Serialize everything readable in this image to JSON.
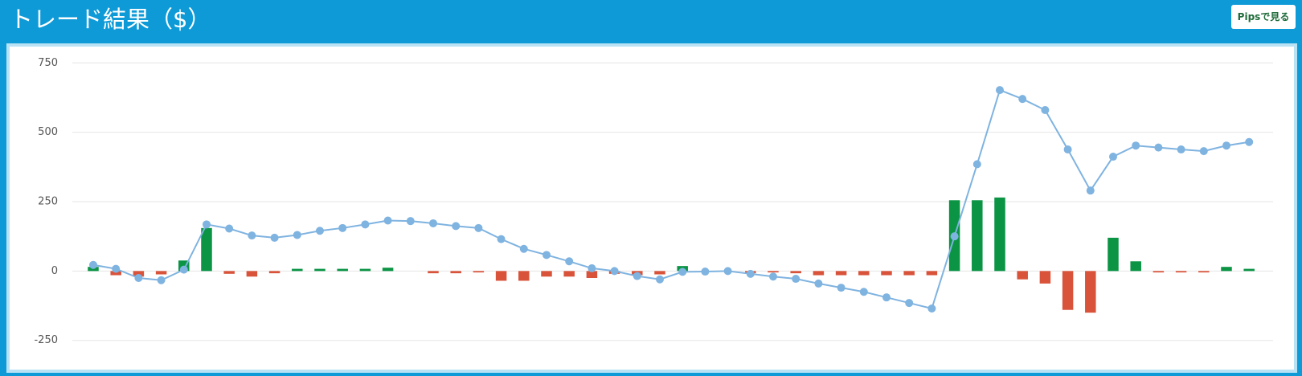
{
  "header": {
    "title": "トレード結果（$）",
    "button": "Pipsで見る"
  },
  "chart_data": {
    "type": "bar-line",
    "ylim": [
      -300,
      800
    ],
    "yticks": [
      -250,
      0,
      250,
      500,
      750
    ],
    "grid": true,
    "series": [
      {
        "type": "bar",
        "positive_color": "#0a9444",
        "negative_color": "#d9533a",
        "values": [
          15,
          -15,
          -20,
          -12,
          38,
          155,
          -10,
          -20,
          -8,
          8,
          8,
          8,
          8,
          12,
          0,
          -8,
          -8,
          -5,
          -35,
          -35,
          -20,
          -20,
          -25,
          -10,
          -15,
          -12,
          18,
          0,
          0,
          -8,
          -5,
          -8,
          -15,
          -15,
          -15,
          -15,
          -15,
          -15,
          255,
          255,
          265,
          -30,
          -45,
          -140,
          -150,
          120,
          35,
          -5,
          -5,
          -5,
          15,
          8
        ]
      },
      {
        "type": "line",
        "color": "#7fb3e0",
        "values": [
          22,
          8,
          -25,
          -33,
          5,
          168,
          153,
          128,
          120,
          130,
          145,
          155,
          168,
          182,
          180,
          172,
          162,
          155,
          115,
          80,
          58,
          35,
          10,
          0,
          -18,
          -30,
          -3,
          -2,
          0,
          -10,
          -20,
          -28,
          -45,
          -60,
          -75,
          -95,
          -115,
          -135,
          125,
          385,
          652,
          620,
          580,
          438,
          290,
          412,
          452,
          445,
          438,
          432,
          452,
          465
        ]
      }
    ]
  }
}
